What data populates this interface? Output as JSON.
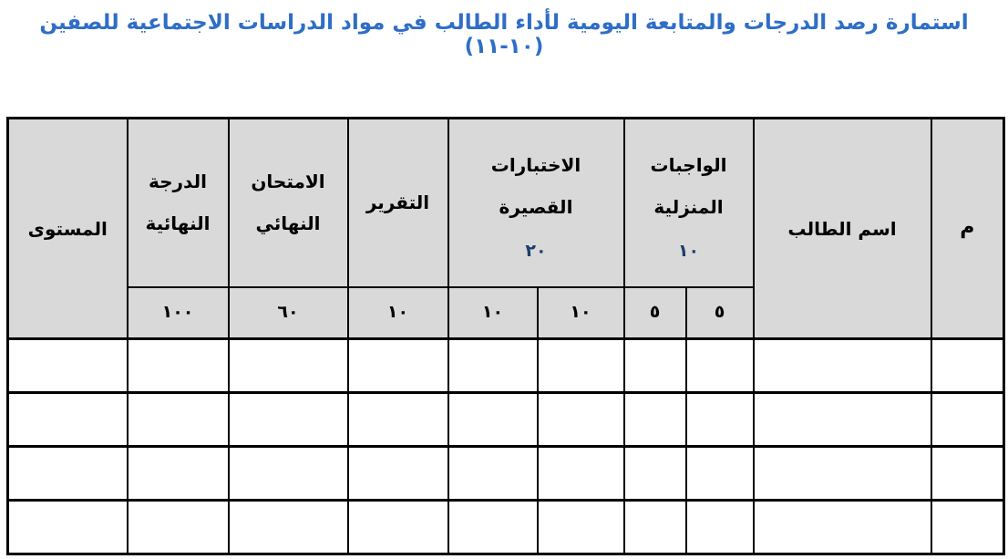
{
  "title": "استمارة رصد الدرجات والمتابعة اليومية لأداء الطالب في مواد الدراسات الاجتماعية للصفين (١٠-١١)",
  "colors": {
    "title_blue": "#2e6ec7",
    "header_bg": "#d9d9d9",
    "border_black": "#000000",
    "digit_navy": "#1b3e6e"
  },
  "table": {
    "empty_rows": 4,
    "columns_per_row": 10,
    "header": {
      "index": "م",
      "student_name": "اسم الطالب",
      "homework": {
        "label": "الواجبات المنزلية",
        "total": "١٠",
        "sub1": "٥",
        "sub2": "٥"
      },
      "quizzes": {
        "label": "الاختبارات القصيرة",
        "total": "٢٠",
        "sub1": "١٠",
        "sub2": "١٠"
      },
      "report": {
        "label": "التقرير",
        "max": "١٠"
      },
      "final_exam": {
        "label": "الامتحان النهائي",
        "max": "٦٠"
      },
      "final_grade": {
        "label": "الدرجة النهائية",
        "max": "١٠٠"
      },
      "level": {
        "label": "المستوى"
      }
    }
  }
}
